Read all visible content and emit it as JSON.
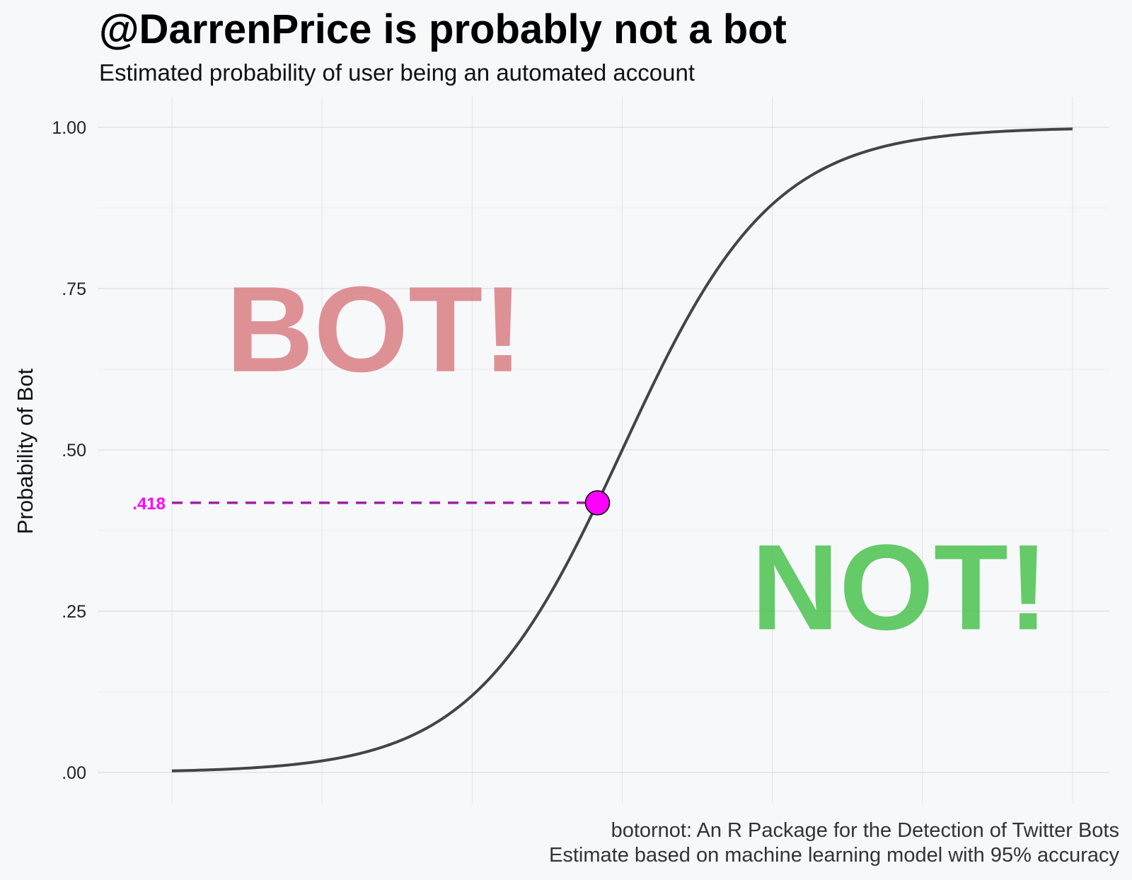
{
  "chart_data": {
    "type": "line",
    "title": "@DarrenPrice is probably not a bot",
    "subtitle": "Estimated probability of user being an automated account",
    "ylabel": "Probability of Bot",
    "xlabel": "",
    "ylim": [
      -0.05,
      1.05
    ],
    "y_ticks": [
      0,
      0.25,
      0.5,
      0.75,
      1
    ],
    "y_tick_labels": [
      ".00",
      ".25",
      ".50",
      ".75",
      "1.00"
    ],
    "grid": true,
    "series": [
      {
        "curve": "logistic",
        "x": [
          -6,
          -5,
          -4,
          -3,
          -2,
          -1.5,
          -1,
          -0.5,
          0,
          0.5,
          1,
          1.5,
          2,
          3,
          4,
          5,
          6
        ],
        "values": [
          0.002,
          0.007,
          0.018,
          0.047,
          0.119,
          0.182,
          0.269,
          0.378,
          0.5,
          0.622,
          0.731,
          0.818,
          0.881,
          0.953,
          0.982,
          0.993,
          0.998
        ]
      }
    ],
    "highlight": {
      "x": -0.33,
      "value": 0.418,
      "label": ".418"
    },
    "annotations": [
      {
        "text": "BOT!",
        "x": -3.3,
        "y": 0.69
      },
      {
        "text": "NOT!",
        "x": 3.7,
        "y": 0.29
      }
    ],
    "caption": [
      "botornot: An R Package for the Detection of Twitter Bots",
      "Estimate based on machine learning model with 95% accuracy"
    ]
  },
  "colors": {
    "background": "#f7f8fa",
    "grid": "#dcdde1",
    "curve": "#444444",
    "highlight_point": "#ff00ff",
    "highlight_line": "#a020a8",
    "highlight_label": "#ff00ff",
    "bot_text": "#d9787c",
    "not_text": "#4cc24f"
  }
}
